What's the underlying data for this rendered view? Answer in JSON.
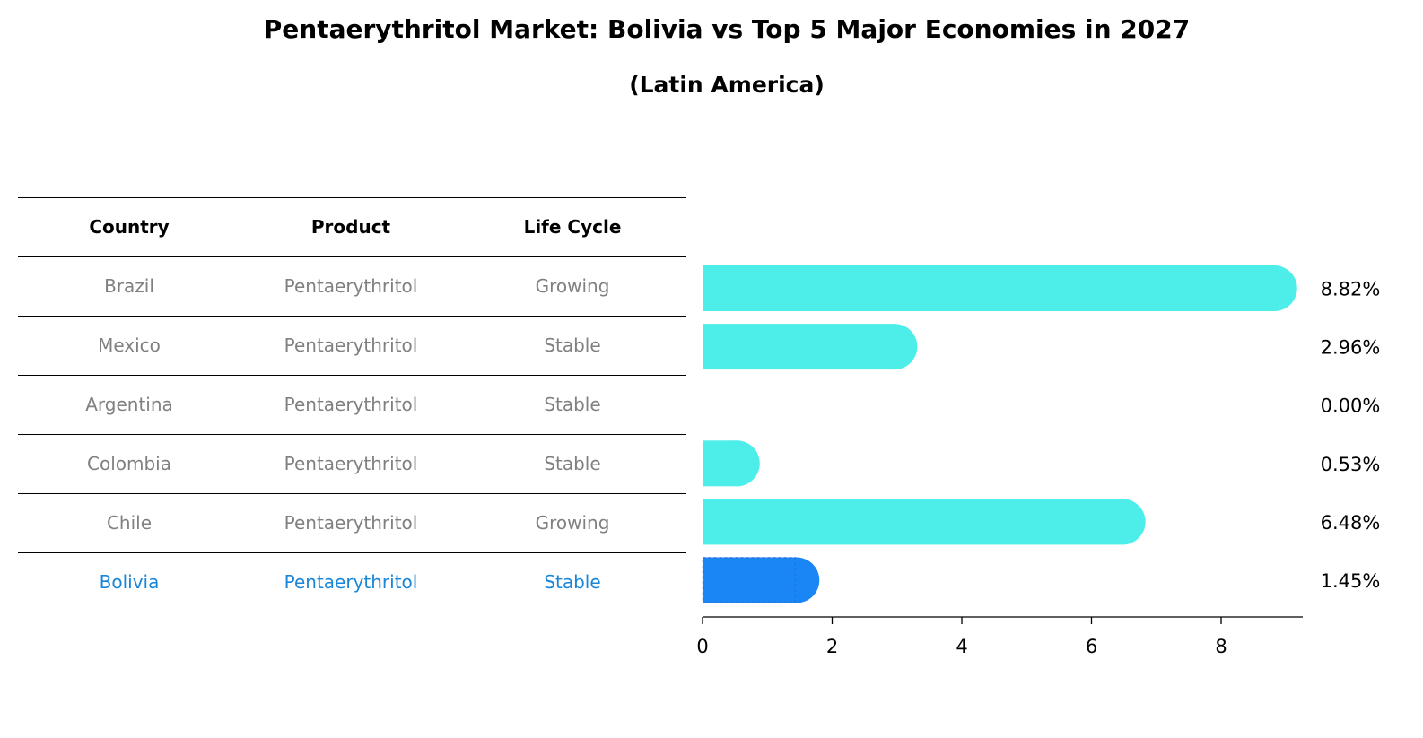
{
  "title": "Pentaerythritol Market: Bolivia vs Top 5 Major Economies in 2027",
  "subtitle": "(Latin America)",
  "table": {
    "headers": [
      "Country",
      "Product",
      "Life Cycle"
    ],
    "rows": [
      {
        "country": "Brazil",
        "product": "Pentaerythritol",
        "life_cycle": "Growing",
        "highlight": false
      },
      {
        "country": "Mexico",
        "product": "Pentaerythritol",
        "life_cycle": "Stable",
        "highlight": false
      },
      {
        "country": "Argentina",
        "product": "Pentaerythritol",
        "life_cycle": "Stable",
        "highlight": false
      },
      {
        "country": "Colombia",
        "product": "Pentaerythritol",
        "life_cycle": "Stable",
        "highlight": false
      },
      {
        "country": "Chile",
        "product": "Pentaerythritol",
        "life_cycle": "Growing",
        "highlight": false
      },
      {
        "country": "Bolivia",
        "product": "Pentaerythritol",
        "life_cycle": "Stable",
        "highlight": true
      }
    ]
  },
  "colors": {
    "bar": "#4DEEEA",
    "highlight_bar": "#1A86F5",
    "highlight_text": "#1A86D8",
    "muted_text": "#808080",
    "axis": "#000000"
  },
  "chart_data": {
    "type": "bar",
    "orientation": "horizontal",
    "title": "Pentaerythritol Market: Bolivia vs Top 5 Major Economies in 2027",
    "subtitle": "(Latin America)",
    "categories": [
      "Brazil",
      "Mexico",
      "Argentina",
      "Colombia",
      "Chile",
      "Bolivia"
    ],
    "values": [
      8.82,
      2.96,
      0.0,
      0.53,
      6.48,
      1.45
    ],
    "value_labels": [
      "8.82%",
      "2.96%",
      "0.00%",
      "0.53%",
      "6.48%",
      "1.45%"
    ],
    "highlight": "Bolivia",
    "xlim": [
      0,
      9.3
    ],
    "xticks": [
      0,
      2,
      4,
      6,
      8
    ],
    "xtick_labels": [
      "0",
      "2",
      "4",
      "6",
      "8"
    ],
    "xlabel": "",
    "ylabel": "",
    "grid": false,
    "legend": "none"
  }
}
